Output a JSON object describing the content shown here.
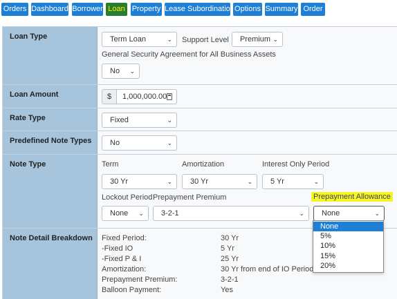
{
  "nav": {
    "items": [
      {
        "label": "Orders"
      },
      {
        "label": "Dashboard"
      },
      {
        "label": "Borrower"
      },
      {
        "label": "Loan"
      },
      {
        "label": "Property"
      },
      {
        "label": "Lease Subordination"
      },
      {
        "label": "Options"
      },
      {
        "label": "Summary"
      },
      {
        "label": "Order"
      }
    ],
    "active": "Loan"
  },
  "loan_type": {
    "label": "Loan Type",
    "value": "Term Loan",
    "support_level_label": "Support Level",
    "support_level_value": "Premium",
    "gsa_label": "General Security Agreement for All Business Assets",
    "gsa_value": "No"
  },
  "loan_amount": {
    "label": "Loan Amount",
    "currency_symbol": "$",
    "value": "1,000,000.00"
  },
  "rate_type": {
    "label": "Rate Type",
    "value": "Fixed"
  },
  "predefined_note_types": {
    "label": "Predefined Note Types",
    "value": "No"
  },
  "note_type": {
    "label": "Note Type",
    "term_label": "Term",
    "term_value": "30 Yr",
    "amortization_label": "Amortization",
    "amortization_value": "30 Yr",
    "interest_only_label": "Interest Only Period",
    "interest_only_value": "5 Yr",
    "lockout_label": "Lockout Period",
    "lockout_value": "None",
    "prepayment_premium_label": "Prepayment Premium",
    "prepayment_premium_value": "3-2-1",
    "prepayment_allowance_label": "Prepayment Allowance",
    "prepayment_allowance_value": "None",
    "prepayment_allowance_options": [
      "None",
      "5%",
      "10%",
      "15%",
      "20%"
    ]
  },
  "breakdown": {
    "label": "Note Detail Breakdown",
    "rows": [
      {
        "key": "Fixed Period:",
        "value": "30 Yr"
      },
      {
        "key": "-Fixed IO",
        "value": "5 Yr"
      },
      {
        "key": "-Fixed P & I",
        "value": "25 Yr"
      },
      {
        "key": "Amortization:",
        "value": "30 Yr from end of IO Period"
      },
      {
        "key": "Prepayment Premium:",
        "value": "3-2-1"
      },
      {
        "key": "Balloon Payment:",
        "value": "Yes"
      }
    ]
  }
}
